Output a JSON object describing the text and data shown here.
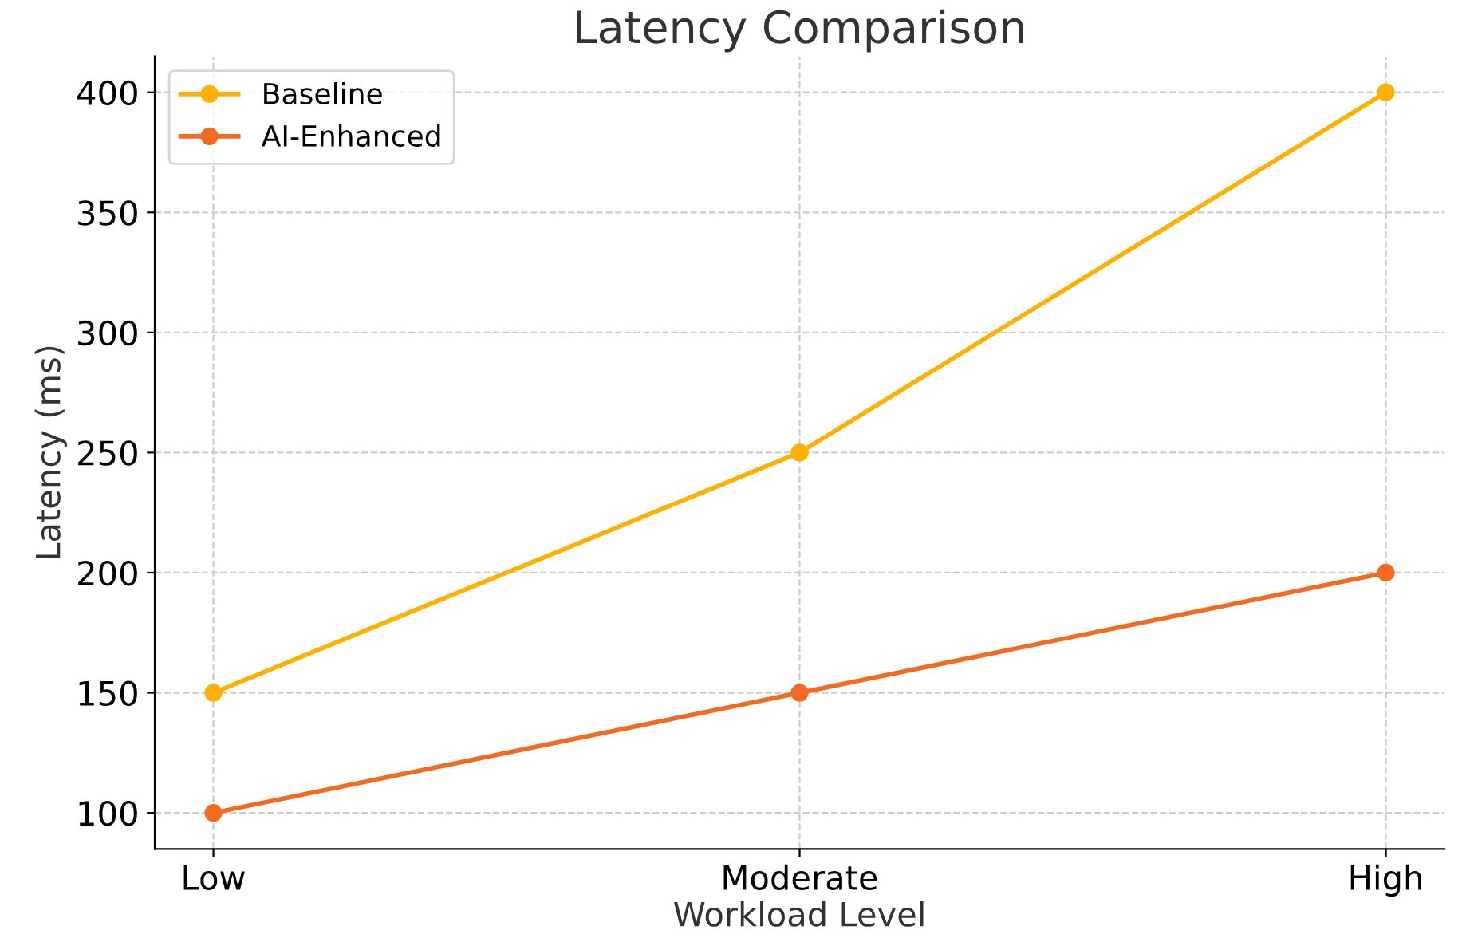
{
  "chart_data": {
    "type": "line",
    "title": "Latency Comparison",
    "xlabel": "Workload Level",
    "ylabel": "Latency (ms)",
    "categories": [
      "Low",
      "Moderate",
      "High"
    ],
    "series": [
      {
        "name": "Baseline",
        "color": "#ffb000",
        "values": [
          150,
          250,
          400
        ]
      },
      {
        "name": "AI-Enhanced",
        "color": "#f26b21",
        "values": [
          100,
          150,
          200
        ]
      }
    ],
    "ylim": [
      85,
      415
    ],
    "yticks": [
      100,
      150,
      200,
      250,
      300,
      350,
      400
    ],
    "grid": true,
    "legend": "top left",
    "marker": "circle",
    "line_style": "solid"
  }
}
